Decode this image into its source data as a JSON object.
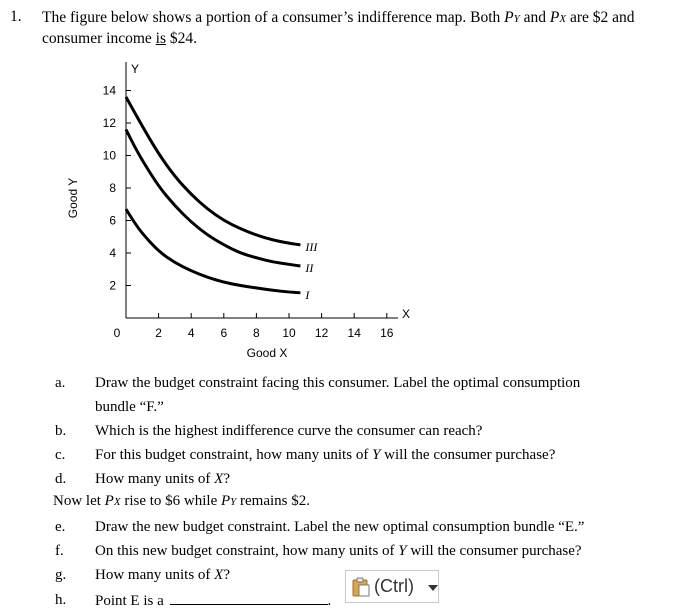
{
  "question": {
    "number": "1.",
    "line1_a": "The figure below shows a portion of a consumer’s indifference map. Both ",
    "py_p": "P",
    "py_sub": "Y",
    "line1_mid": " and ",
    "px_p": "P",
    "px_sub": "X",
    "line1_b": " are $2 and",
    "line2_a": "consumer income ",
    "line2_is": "is",
    "line2_b": " $24."
  },
  "chart_data": {
    "type": "line",
    "xlabel": "Good X",
    "ylabel": "Good Y",
    "x_axis_letter": "X",
    "y_axis_letter": "Y",
    "x_ticks": [
      "0",
      "2",
      "4",
      "6",
      "8",
      "10",
      "12",
      "14",
      "16"
    ],
    "y_ticks": [
      "2",
      "4",
      "6",
      "8",
      "10",
      "12",
      "14"
    ],
    "xlim": [
      0,
      16
    ],
    "ylim": [
      0,
      14
    ],
    "series": [
      {
        "name": "I",
        "points": [
          [
            0,
            6.7
          ],
          [
            0.5,
            5.9
          ],
          [
            1,
            5.2
          ],
          [
            2,
            4.1
          ],
          [
            3,
            3.4
          ],
          [
            4,
            2.9
          ],
          [
            5,
            2.5
          ],
          [
            6,
            2.2
          ],
          [
            7,
            2.0
          ],
          [
            8,
            1.85
          ],
          [
            9,
            1.7
          ],
          [
            10,
            1.6
          ],
          [
            10.7,
            1.55
          ]
        ]
      },
      {
        "name": "II",
        "points": [
          [
            0,
            11.6
          ],
          [
            0.5,
            10.6
          ],
          [
            1,
            9.7
          ],
          [
            2,
            8.1
          ],
          [
            3,
            6.9
          ],
          [
            4,
            5.9
          ],
          [
            5,
            5.1
          ],
          [
            6,
            4.5
          ],
          [
            7,
            4.0
          ],
          [
            8,
            3.7
          ],
          [
            9,
            3.45
          ],
          [
            10,
            3.3
          ],
          [
            10.7,
            3.2
          ]
        ]
      },
      {
        "name": "III",
        "points": [
          [
            0,
            13.6
          ],
          [
            1,
            11.8
          ],
          [
            2,
            10.1
          ],
          [
            3,
            8.7
          ],
          [
            4,
            7.6
          ],
          [
            5,
            6.7
          ],
          [
            6,
            6.0
          ],
          [
            7,
            5.5
          ],
          [
            8,
            5.1
          ],
          [
            9,
            4.8
          ],
          [
            10,
            4.6
          ],
          [
            10.7,
            4.5
          ]
        ]
      }
    ],
    "grid": false,
    "legend": "none"
  },
  "items": [
    {
      "label": "a.",
      "lines": [
        "Draw the budget constraint facing this consumer. Label the optimal consumption",
        "bundle “F.”"
      ]
    },
    {
      "label": "b.",
      "text": "Which is the highest indifference curve the consumer can reach?"
    },
    {
      "label": "c.",
      "text_a": "For this budget constraint, how many units of ",
      "var": "Y",
      "text_b": " will the consumer purchase?"
    },
    {
      "label": "d.",
      "text_a": "How many units of ",
      "var": "X",
      "text_b": "?"
    },
    {
      "label": "e.",
      "text": "Draw the new budget constraint. Label the new optimal consumption bundle “E.”"
    },
    {
      "label": "f.",
      "text_a": "On this new budget constraint, how many units of ",
      "var": "Y",
      "text_b": " will the consumer purchase?"
    },
    {
      "label": "g.",
      "text_a": "How many units of ",
      "var": "X",
      "text_b": "?"
    },
    {
      "label": "h.",
      "text": "Point E is a "
    }
  ],
  "now_line": {
    "a": "Now let ",
    "px_p": "P",
    "px_sub": "X",
    "b": " rise to $6 while ",
    "py_p": "P",
    "py_sub": "Y",
    "c": " remains $2."
  },
  "paste_options": {
    "label": "(Ctrl)",
    "icon": "clipboard-icon"
  }
}
